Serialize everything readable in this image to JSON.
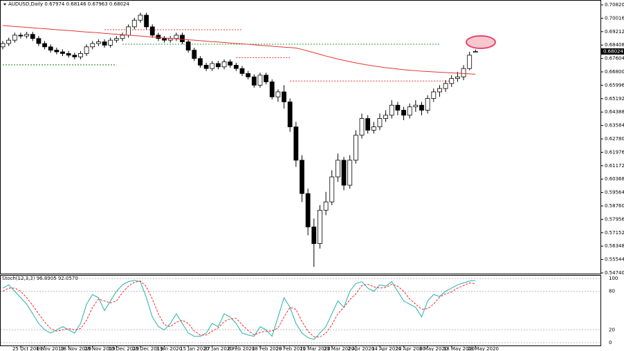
{
  "chart_data": [
    {
      "type": "candlestick",
      "title": "AUDUSD,Daily 0.67974 0.68146 0.67963 0.68024",
      "categories": [
        null,
        null,
        null,
        "25 Oct 2019",
        null,
        null,
        null,
        "6 Nov 2019",
        null,
        null,
        null,
        "18 Nov 2019",
        null,
        null,
        null,
        "28 Nov 2019",
        null,
        null,
        null,
        "10 Dec 2019",
        null,
        null,
        null,
        "20 Dec 2019",
        null,
        null,
        null,
        "3 Jan 2020",
        null,
        null,
        null,
        "15 Jan 2020",
        null,
        null,
        null,
        "27 Jan 2020",
        null,
        null,
        null,
        "6 Feb 2020",
        null,
        null,
        null,
        "18 Feb 2020",
        null,
        null,
        null,
        "28 Feb 2020",
        null,
        null,
        null,
        "11 Mar 2020",
        null,
        null,
        null,
        "23 Mar 2020",
        null,
        null,
        null,
        "2 Apr 2020",
        null,
        null,
        null,
        "14 Apr 2020",
        null,
        null,
        null,
        "24 Apr 2020",
        null,
        null,
        null,
        "6 May 2020",
        null,
        null,
        null,
        "18 May 2020",
        null,
        null,
        null,
        "28 May 2020"
      ],
      "open": [
        0.683,
        0.685,
        0.687,
        0.69,
        0.6895,
        0.6905,
        0.688,
        0.685,
        0.683,
        0.681,
        0.68,
        0.679,
        0.678,
        0.677,
        0.679,
        0.683,
        0.685,
        0.686,
        0.684,
        0.687,
        0.688,
        0.69,
        0.695,
        0.699,
        0.702,
        0.695,
        0.69,
        0.688,
        0.687,
        0.688,
        0.69,
        0.686,
        0.681,
        0.676,
        0.672,
        0.67,
        0.673,
        0.671,
        0.674,
        0.672,
        0.67,
        0.667,
        0.665,
        0.66,
        0.666,
        0.662,
        0.653,
        0.656,
        0.65,
        0.635,
        0.615,
        0.595,
        0.575,
        0.565,
        0.585,
        0.59,
        0.605,
        0.615,
        0.6,
        0.615,
        0.63,
        0.64,
        0.633,
        0.635,
        0.64,
        0.642,
        0.648,
        0.645,
        0.642,
        0.647,
        0.648,
        0.645,
        0.652,
        0.656,
        0.658,
        0.661,
        0.664,
        0.665,
        0.67,
        0.67974
      ],
      "high": [
        0.6865,
        0.6885,
        0.6915,
        0.6915,
        0.692,
        0.692,
        0.6895,
        0.6865,
        0.6845,
        0.6825,
        0.6815,
        0.6805,
        0.6795,
        0.6805,
        0.6845,
        0.6865,
        0.6875,
        0.6875,
        0.6885,
        0.6895,
        0.6915,
        0.6965,
        0.7005,
        0.7035,
        0.7035,
        0.6965,
        0.6915,
        0.6895,
        0.6895,
        0.6915,
        0.6915,
        0.6875,
        0.6825,
        0.6775,
        0.6735,
        0.6745,
        0.6745,
        0.6755,
        0.6755,
        0.6735,
        0.6715,
        0.6685,
        0.6665,
        0.6675,
        0.6675,
        0.6635,
        0.6575,
        0.66,
        0.652,
        0.638,
        0.618,
        0.598,
        0.58,
        0.588,
        0.596,
        0.609,
        0.619,
        0.617,
        0.618,
        0.633,
        0.643,
        0.642,
        0.638,
        0.643,
        0.645,
        0.651,
        0.65,
        0.647,
        0.649,
        0.651,
        0.65,
        0.654,
        0.658,
        0.66,
        0.663,
        0.666,
        0.668,
        0.672,
        0.68,
        0.68146
      ],
      "low": [
        0.6815,
        0.6835,
        0.6855,
        0.688,
        0.688,
        0.6865,
        0.6835,
        0.6815,
        0.6795,
        0.6785,
        0.6775,
        0.6765,
        0.6755,
        0.6755,
        0.6775,
        0.6815,
        0.6835,
        0.6825,
        0.6825,
        0.6855,
        0.6865,
        0.6885,
        0.6935,
        0.6975,
        0.6935,
        0.6885,
        0.6865,
        0.6855,
        0.6855,
        0.6865,
        0.6845,
        0.6795,
        0.6745,
        0.6705,
        0.6685,
        0.6685,
        0.6695,
        0.6695,
        0.6705,
        0.6685,
        0.6655,
        0.6635,
        0.6585,
        0.6585,
        0.6605,
        0.6515,
        0.65,
        0.646,
        0.632,
        0.611,
        0.59,
        0.57,
        0.551,
        0.562,
        0.582,
        0.588,
        0.602,
        0.597,
        0.598,
        0.613,
        0.628,
        0.631,
        0.631,
        0.633,
        0.638,
        0.64,
        0.642,
        0.639,
        0.64,
        0.644,
        0.642,
        0.643,
        0.65,
        0.653,
        0.656,
        0.659,
        0.662,
        0.663,
        0.669,
        0.67963
      ],
      "close": [
        0.685,
        0.687,
        0.69,
        0.6895,
        0.6905,
        0.688,
        0.685,
        0.683,
        0.681,
        0.68,
        0.679,
        0.678,
        0.677,
        0.679,
        0.683,
        0.685,
        0.686,
        0.684,
        0.687,
        0.688,
        0.69,
        0.695,
        0.699,
        0.702,
        0.695,
        0.69,
        0.688,
        0.687,
        0.688,
        0.69,
        0.686,
        0.681,
        0.676,
        0.672,
        0.67,
        0.673,
        0.671,
        0.674,
        0.672,
        0.67,
        0.667,
        0.665,
        0.66,
        0.666,
        0.662,
        0.653,
        0.656,
        0.65,
        0.635,
        0.615,
        0.595,
        0.575,
        0.565,
        0.585,
        0.59,
        0.605,
        0.615,
        0.6,
        0.615,
        0.63,
        0.64,
        0.633,
        0.635,
        0.64,
        0.642,
        0.648,
        0.645,
        0.642,
        0.647,
        0.648,
        0.645,
        0.652,
        0.656,
        0.658,
        0.661,
        0.664,
        0.665,
        0.67,
        0.678,
        0.68024
      ],
      "ma": {
        "color": "#e8332f",
        "values": [
          0.6958,
          0.6955,
          0.6952,
          0.695,
          0.6947,
          0.6944,
          0.6941,
          0.6939,
          0.6936,
          0.6933,
          0.693,
          0.6928,
          0.6925,
          0.6922,
          0.6919,
          0.6917,
          0.6914,
          0.6911,
          0.6908,
          0.6906,
          0.6903,
          0.69,
          0.6897,
          0.6895,
          0.6892,
          0.6889,
          0.6886,
          0.6883,
          0.6881,
          0.6878,
          0.6875,
          0.6872,
          0.687,
          0.6867,
          0.6864,
          0.6861,
          0.6859,
          0.6856,
          0.6853,
          0.685,
          0.6848,
          0.6845,
          0.6842,
          0.6839,
          0.6837,
          0.6834,
          0.6831,
          0.6828,
          0.6826,
          0.6823,
          0.6815,
          0.6805,
          0.6795,
          0.6785,
          0.6775,
          0.6766,
          0.6757,
          0.6749,
          0.6741,
          0.6734,
          0.6727,
          0.6721,
          0.6715,
          0.671,
          0.6705,
          0.6701,
          0.6697,
          0.6693,
          0.669,
          0.6687,
          0.6684,
          0.6682,
          0.668,
          0.6678,
          0.6676,
          0.6674,
          0.6672,
          0.667,
          0.6668,
          0.6666
        ]
      },
      "levels": [
        {
          "value": 0.6933,
          "start": 17,
          "end": 40,
          "color": "#e8332f"
        },
        {
          "value": 0.6846,
          "start": 20,
          "end": 73,
          "color": "#2a9d2a"
        },
        {
          "value": 0.6722,
          "start": 0,
          "end": 19,
          "color": "#0a7a0a"
        },
        {
          "value": 0.6765,
          "start": 39,
          "end": 48,
          "color": "#e8332f"
        },
        {
          "value": 0.6625,
          "start": 48,
          "end": 75,
          "color": "#e8332f"
        }
      ],
      "last_price": 0.68024,
      "ylim": [
        0.5474,
        0.7082
      ],
      "yticks": [
        {
          "value": 0.7082,
          "label": "0.70820"
        },
        {
          "value": 0.70016,
          "label": "0.70016"
        },
        {
          "value": 0.69212,
          "label": "0.69212"
        },
        {
          "value": 0.68408,
          "label": "0.68408"
        },
        {
          "value": 0.67604,
          "label": "0.67604"
        },
        {
          "value": 0.668,
          "label": "0.66800"
        },
        {
          "value": 0.65996,
          "label": "0.65996"
        },
        {
          "value": 0.65192,
          "label": "0.65192"
        },
        {
          "value": 0.64388,
          "label": "0.64388"
        },
        {
          "value": 0.63584,
          "label": "0.63584"
        },
        {
          "value": 0.6278,
          "label": "0.62780"
        },
        {
          "value": 0.61976,
          "label": "0.61976"
        },
        {
          "value": 0.61172,
          "label": "0.61172"
        },
        {
          "value": 0.60368,
          "label": "0.60368"
        },
        {
          "value": 0.59564,
          "label": "0.59564"
        },
        {
          "value": 0.5876,
          "label": "0.58760"
        },
        {
          "value": 0.57956,
          "label": "0.57956"
        },
        {
          "value": 0.57152,
          "label": "0.57152"
        },
        {
          "value": 0.56348,
          "label": "0.56348"
        },
        {
          "value": 0.55544,
          "label": "0.55544"
        },
        {
          "value": 0.5474,
          "label": "0.54740"
        }
      ]
    },
    {
      "type": "line",
      "title": "Stoch(12,3,3) 96.8905 92.0570",
      "series": [
        {
          "color": "#20b2aa",
          "dashed": false,
          "values": [
            85,
            90,
            80,
            70,
            60,
            45,
            30,
            20,
            15,
            20,
            25,
            20,
            15,
            30,
            60,
            75,
            70,
            50,
            65,
            80,
            90,
            95,
            97,
            95,
            70,
            40,
            25,
            20,
            30,
            45,
            30,
            15,
            10,
            10,
            15,
            30,
            25,
            45,
            40,
            30,
            15,
            12,
            10,
            25,
            20,
            10,
            40,
            70,
            55,
            30,
            15,
            8,
            5,
            15,
            25,
            45,
            65,
            55,
            80,
            92,
            95,
            85,
            80,
            90,
            88,
            95,
            80,
            65,
            60,
            55,
            40,
            65,
            75,
            72,
            80,
            85,
            90,
            93,
            96,
            96.8905
          ]
        },
        {
          "color": "#ff2020",
          "dashed": true,
          "values": [
            80,
            85,
            85,
            80,
            70,
            58,
            45,
            32,
            22,
            18,
            20,
            22,
            20,
            22,
            35,
            55,
            68,
            65,
            62,
            65,
            78,
            88,
            94,
            96,
            87,
            68,
            45,
            28,
            25,
            32,
            35,
            30,
            18,
            12,
            12,
            18,
            23,
            33,
            37,
            38,
            28,
            19,
            12,
            16,
            18,
            18,
            23,
            40,
            55,
            52,
            33,
            18,
            9,
            9,
            15,
            28,
            45,
            55,
            67,
            76,
            89,
            91,
            87,
            85,
            86,
            91,
            88,
            80,
            68,
            60,
            52,
            53,
            60,
            71,
            76,
            79,
            85,
            89,
            93,
            92.057
          ]
        }
      ],
      "ylim": [
        0,
        100
      ],
      "yticks": [
        0,
        20,
        80,
        100
      ]
    }
  ]
}
